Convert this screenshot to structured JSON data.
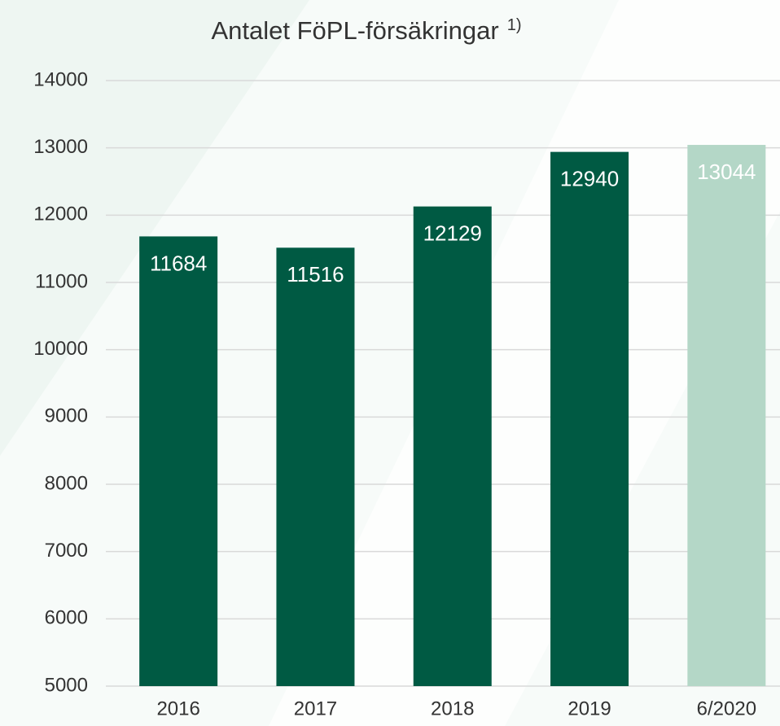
{
  "chart_data": {
    "type": "bar",
    "title": "Antalet FöPL-försäkringar",
    "title_note": "1)",
    "categories": [
      "2016",
      "2017",
      "2018",
      "2019",
      "6/2020"
    ],
    "values": [
      11684,
      11516,
      12129,
      12940,
      13044
    ],
    "colors": [
      "#005a43",
      "#005a43",
      "#005a43",
      "#005a43",
      "#b4d7c7"
    ],
    "ylim": [
      5000,
      14000
    ],
    "yticks": [
      5000,
      6000,
      7000,
      8000,
      9000,
      10000,
      11000,
      12000,
      13000,
      14000
    ],
    "grid": true
  }
}
